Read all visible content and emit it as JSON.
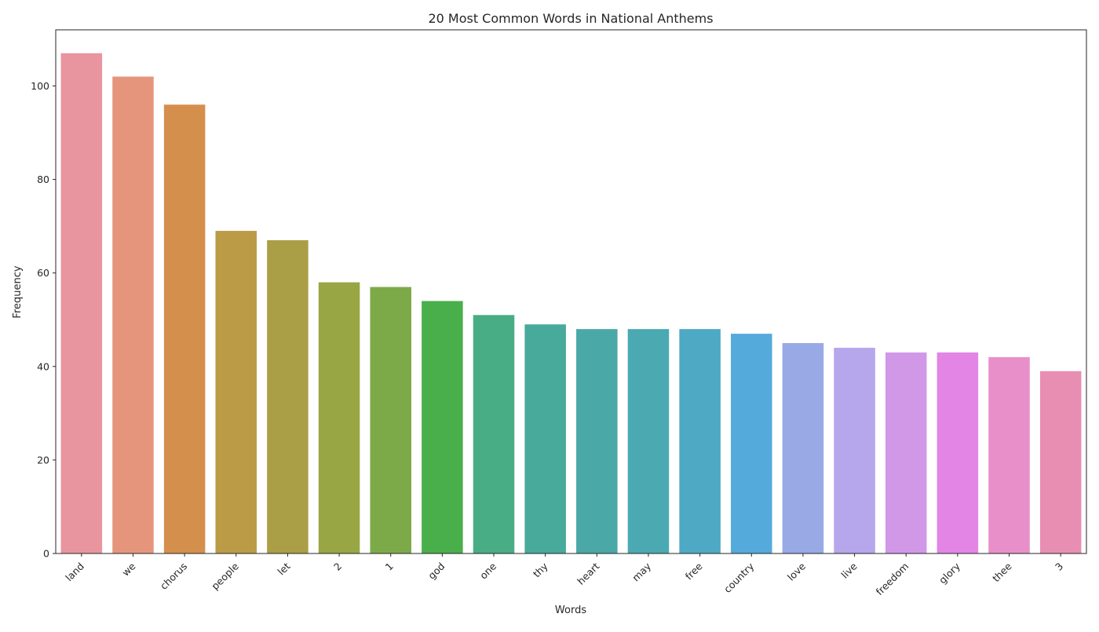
{
  "chart_data": {
    "type": "bar",
    "title": "20 Most Common Words in National Anthems",
    "xlabel": "Words",
    "ylabel": "Frequency",
    "ylim": [
      0,
      112
    ],
    "yticks": [
      0,
      20,
      40,
      60,
      80,
      100
    ],
    "grid": false,
    "categories": [
      "land",
      "we",
      "chorus",
      "people",
      "let",
      "2",
      "1",
      "god",
      "one",
      "thy",
      "heart",
      "may",
      "free",
      "country",
      "love",
      "live",
      "freedom",
      "glory",
      "thee",
      "3"
    ],
    "values": [
      107,
      102,
      96,
      69,
      67,
      58,
      57,
      54,
      51,
      49,
      48,
      48,
      48,
      47,
      45,
      44,
      43,
      43,
      42,
      39
    ],
    "colors": [
      "#e8959f",
      "#e6957d",
      "#d58f4c",
      "#bb9b46",
      "#aa9f46",
      "#98a744",
      "#7daa49",
      "#49af4b",
      "#48ad84",
      "#47aa9b",
      "#4aa8a6",
      "#4ba9b2",
      "#4ea9c4",
      "#54aadb",
      "#98a9e6",
      "#b6a6ec",
      "#d198e8",
      "#e285e4",
      "#e88fc9",
      "#e88eb3"
    ]
  }
}
